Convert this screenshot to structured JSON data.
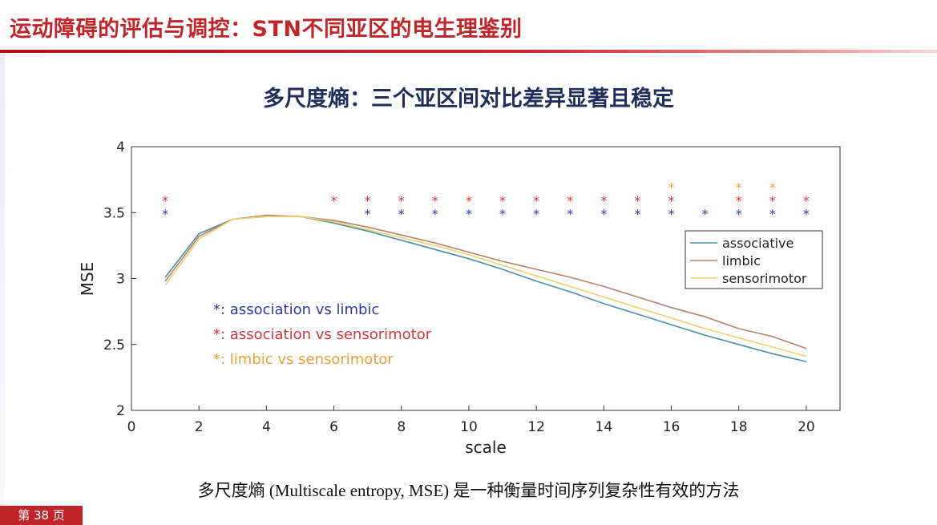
{
  "slide": {
    "title": "运动障碍的评估与调控：STN不同亚区的电生理鉴别",
    "page_label": "第 38 页",
    "caption": "多尺度熵 (Multiscale entropy, MSE) 是一种衡量时间序列复杂性有效的方法"
  },
  "colors": {
    "title_red": "#c0252a",
    "associative": "#4a8fa8",
    "limbic": "#b8806a",
    "sensorimotor": "#f0d070",
    "star_blue": "#2b3a9e",
    "star_red": "#d2393a",
    "star_orange": "#e8a23a"
  },
  "chart_data": {
    "type": "line",
    "title": "多尺度熵：三个亚区间对比差异显著且稳定",
    "xlabel": "scale",
    "ylabel": "MSE",
    "xlim": [
      0,
      21
    ],
    "ylim": [
      2,
      4
    ],
    "xticks": [
      0,
      2,
      4,
      6,
      8,
      10,
      12,
      14,
      16,
      18,
      20
    ],
    "yticks": [
      2,
      2.5,
      3,
      3.5,
      4
    ],
    "x": [
      1,
      2,
      3,
      4,
      5,
      6,
      7,
      8,
      9,
      10,
      11,
      12,
      13,
      14,
      15,
      16,
      17,
      18,
      19,
      20
    ],
    "series": [
      {
        "name": "associative",
        "color": "#4a8fa8",
        "values": [
          3.01,
          3.34,
          3.45,
          3.47,
          3.47,
          3.42,
          3.36,
          3.29,
          3.22,
          3.15,
          3.07,
          2.98,
          2.9,
          2.81,
          2.73,
          2.65,
          2.57,
          2.5,
          2.43,
          2.37
        ]
      },
      {
        "name": "limbic",
        "color": "#b8806a",
        "values": [
          2.98,
          3.32,
          3.45,
          3.48,
          3.47,
          3.44,
          3.39,
          3.33,
          3.27,
          3.2,
          3.13,
          3.07,
          3.01,
          2.94,
          2.86,
          2.78,
          2.71,
          2.62,
          2.56,
          2.47
        ]
      },
      {
        "name": "sensorimotor",
        "color": "#f0d070",
        "values": [
          2.95,
          3.3,
          3.45,
          3.47,
          3.47,
          3.43,
          3.37,
          3.31,
          3.25,
          3.18,
          3.1,
          3.02,
          2.94,
          2.86,
          2.78,
          2.7,
          2.62,
          2.55,
          2.48,
          2.41
        ]
      }
    ],
    "significance": [
      {
        "label": "*: association vs limbic",
        "color": "#2b3a9e",
        "y": 3.5,
        "x": [
          1,
          7,
          8,
          9,
          10,
          11,
          12,
          13,
          14,
          15,
          16,
          17,
          18,
          19,
          20
        ]
      },
      {
        "label": "*: association vs sensorimotor",
        "color": "#d2393a",
        "y": 3.6,
        "x": [
          1,
          6,
          7,
          8,
          9,
          10,
          11,
          12,
          13,
          14,
          15,
          16,
          18,
          19,
          20
        ]
      },
      {
        "label": "*: limbic vs sensorimotor",
        "color": "#e8a23a",
        "y": 3.7,
        "x": [
          16,
          18,
          19
        ]
      }
    ],
    "legend_position": "right",
    "grid": false
  }
}
